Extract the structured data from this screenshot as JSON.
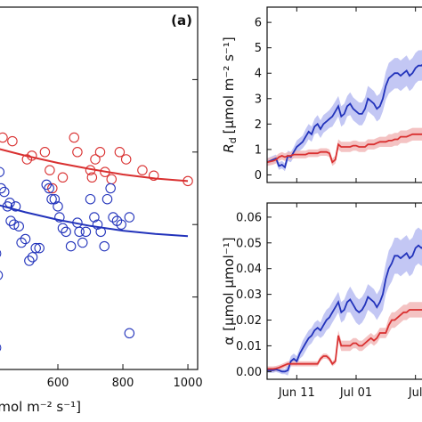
{
  "chart_data": [
    {
      "type": "scatter",
      "panel_label": "(a)",
      "xlabel_visible": "[μmol m⁻² s⁻¹]",
      "x_ticks": [
        600,
        800,
        1000
      ],
      "xlim": [
        400,
        1030
      ],
      "ylim": [
        0,
        1
      ],
      "series": [
        {
          "color": "#d93030",
          "points": [
            [
              430,
              0.64
            ],
            [
              460,
              0.63
            ],
            [
              505,
              0.58
            ],
            [
              520,
              0.59
            ],
            [
              560,
              0.6
            ],
            [
              575,
              0.55
            ],
            [
              583,
              0.5
            ],
            [
              615,
              0.53
            ],
            [
              650,
              0.64
            ],
            [
              660,
              0.6
            ],
            [
              700,
              0.55
            ],
            [
              705,
              0.53
            ],
            [
              715,
              0.58
            ],
            [
              730,
              0.6
            ],
            [
              745,
              0.545
            ],
            [
              765,
              0.525
            ],
            [
              790,
              0.6
            ],
            [
              810,
              0.58
            ],
            [
              860,
              0.55
            ],
            [
              895,
              0.535
            ]
          ],
          "fit": [
            [
              400,
              0.613
            ],
            [
              500,
              0.59
            ],
            [
              600,
              0.57
            ],
            [
              700,
              0.553
            ],
            [
              800,
              0.538
            ],
            [
              900,
              0.527
            ],
            [
              1000,
              0.52
            ]
          ],
          "fit_end_marker": [
            1000,
            0.52
          ]
        },
        {
          "color": "#2233bb",
          "points": [
            [
              405,
              0.38
            ],
            [
              410,
              0.32
            ],
            [
              415,
              0.26
            ],
            [
              420,
              0.545
            ],
            [
              425,
              0.5
            ],
            [
              435,
              0.49
            ],
            [
              445,
              0.45
            ],
            [
              452,
              0.46
            ],
            [
              455,
              0.41
            ],
            [
              465,
              0.4
            ],
            [
              470,
              0.45
            ],
            [
              480,
              0.395
            ],
            [
              488,
              0.35
            ],
            [
              500,
              0.36
            ],
            [
              512,
              0.3
            ],
            [
              522,
              0.31
            ],
            [
              532,
              0.335
            ],
            [
              543,
              0.335
            ],
            [
              565,
              0.51
            ],
            [
              573,
              0.5
            ],
            [
              581,
              0.47
            ],
            [
              590,
              0.47
            ],
            [
              600,
              0.45
            ],
            [
              605,
              0.42
            ],
            [
              615,
              0.39
            ],
            [
              625,
              0.38
            ],
            [
              640,
              0.34
            ],
            [
              660,
              0.405
            ],
            [
              666,
              0.38
            ],
            [
              676,
              0.35
            ],
            [
              686,
              0.38
            ],
            [
              700,
              0.47
            ],
            [
              712,
              0.42
            ],
            [
              722,
              0.4
            ],
            [
              732,
              0.38
            ],
            [
              743,
              0.34
            ],
            [
              752,
              0.47
            ],
            [
              762,
              0.5
            ],
            [
              770,
              0.42
            ],
            [
              782,
              0.41
            ],
            [
              795,
              0.4
            ],
            [
              820,
              0.42
            ],
            [
              410,
              0.06
            ],
            [
              820,
              0.1
            ]
          ],
          "fit": [
            [
              400,
              0.458
            ],
            [
              500,
              0.434
            ],
            [
              600,
              0.413
            ],
            [
              700,
              0.396
            ],
            [
              800,
              0.383
            ],
            [
              900,
              0.374
            ],
            [
              1000,
              0.368
            ]
          ]
        }
      ]
    },
    {
      "type": "line",
      "ylabel": "R_d [μmol m⁻² s⁻¹]",
      "ylabel_main": "R",
      "ylabel_sub": "d",
      "ylabel_unit": "[μmol m⁻² s⁻¹]",
      "ylim": [
        -0.3,
        6.6
      ],
      "y_ticks": [
        0,
        1,
        2,
        3,
        4,
        5,
        6
      ],
      "x_ticks": [
        "Jun 11",
        "Jul 01",
        "Jul"
      ],
      "x_tick_days": [
        10,
        30,
        50
      ],
      "xlim": [
        0,
        57
      ],
      "series": [
        {
          "color": "#2233bb",
          "band": "#b9bdf2",
          "x": [
            0,
            2,
            3,
            4,
            5,
            6,
            7,
            8,
            9,
            10,
            11,
            12,
            13,
            14,
            15,
            16,
            17,
            18,
            19,
            20,
            21,
            22,
            23,
            24,
            25,
            26,
            27,
            28,
            29,
            30,
            31,
            32,
            33,
            34,
            35,
            36,
            37,
            38,
            39,
            40,
            41,
            42,
            43,
            44,
            45,
            46,
            47,
            48,
            49,
            50,
            51,
            52,
            53,
            54,
            55,
            56,
            57
          ],
          "y": [
            0.5,
            0.6,
            0.65,
            0.35,
            0.4,
            0.3,
            0.75,
            0.7,
            0.9,
            1.1,
            1.2,
            1.3,
            1.5,
            1.7,
            1.6,
            1.9,
            2.0,
            1.8,
            2.0,
            2.1,
            2.2,
            2.3,
            2.5,
            2.7,
            2.3,
            2.4,
            2.7,
            2.8,
            2.6,
            2.5,
            2.4,
            2.4,
            2.6,
            3.0,
            2.9,
            2.8,
            2.6,
            2.7,
            3.0,
            3.5,
            3.8,
            3.9,
            4.0,
            4.0,
            3.9,
            4.0,
            4.1,
            3.9,
            4.0,
            4.2,
            4.3,
            4.3,
            4.4,
            4.3,
            4.3,
            4.4,
            4.4
          ],
          "err": [
            0.15,
            0.15,
            0.15,
            0.15,
            0.15,
            0.15,
            0.2,
            0.2,
            0.2,
            0.25,
            0.25,
            0.25,
            0.3,
            0.3,
            0.3,
            0.3,
            0.35,
            0.35,
            0.35,
            0.35,
            0.35,
            0.4,
            0.4,
            0.4,
            0.4,
            0.4,
            0.4,
            0.45,
            0.45,
            0.45,
            0.45,
            0.45,
            0.45,
            0.5,
            0.5,
            0.5,
            0.5,
            0.5,
            0.5,
            0.55,
            0.6,
            0.6,
            0.6,
            0.6,
            0.6,
            0.6,
            0.6,
            0.6,
            0.6,
            0.6,
            0.6,
            0.6,
            0.6,
            0.6,
            0.6,
            0.6,
            0.6
          ]
        },
        {
          "color": "#d93030",
          "band": "#f2b9b9",
          "x": [
            0,
            2,
            3,
            4,
            5,
            6,
            7,
            8,
            9,
            10,
            11,
            12,
            13,
            14,
            15,
            16,
            17,
            18,
            19,
            20,
            21,
            22,
            23,
            24,
            25,
            26,
            27,
            28,
            29,
            30,
            31,
            32,
            33,
            34,
            35,
            36,
            37,
            38,
            39,
            40,
            41,
            42,
            43,
            44,
            45,
            46,
            47,
            48,
            49,
            50,
            51,
            52,
            53,
            54,
            55,
            56,
            57
          ],
          "y": [
            0.5,
            0.55,
            0.6,
            0.7,
            0.75,
            0.7,
            0.75,
            0.75,
            0.8,
            0.8,
            0.8,
            0.8,
            0.8,
            0.85,
            0.85,
            0.85,
            0.85,
            0.9,
            0.9,
            0.9,
            0.85,
            0.5,
            0.6,
            1.2,
            1.1,
            1.1,
            1.1,
            1.1,
            1.15,
            1.15,
            1.1,
            1.1,
            1.1,
            1.2,
            1.2,
            1.2,
            1.25,
            1.3,
            1.3,
            1.3,
            1.35,
            1.35,
            1.4,
            1.4,
            1.5,
            1.5,
            1.5,
            1.55,
            1.6,
            1.6,
            1.6,
            1.6,
            1.6,
            1.6,
            1.6,
            1.6,
            1.6
          ],
          "err": [
            0.15,
            0.15,
            0.15,
            0.15,
            0.15,
            0.15,
            0.15,
            0.15,
            0.15,
            0.15,
            0.15,
            0.15,
            0.15,
            0.15,
            0.15,
            0.15,
            0.15,
            0.15,
            0.15,
            0.15,
            0.15,
            0.15,
            0.15,
            0.2,
            0.2,
            0.2,
            0.2,
            0.2,
            0.2,
            0.2,
            0.2,
            0.2,
            0.2,
            0.2,
            0.2,
            0.2,
            0.2,
            0.2,
            0.2,
            0.2,
            0.25,
            0.25,
            0.25,
            0.25,
            0.25,
            0.25,
            0.25,
            0.25,
            0.25,
            0.25,
            0.25,
            0.25,
            0.25,
            0.25,
            0.25,
            0.25,
            0.25
          ]
        }
      ]
    },
    {
      "type": "line",
      "ylabel": "α [μmol μmol⁻¹]",
      "ylabel_main": "α",
      "ylabel_unit": "[μmol μmol⁻¹]",
      "ylim": [
        -0.003,
        0.0655
      ],
      "y_ticks": [
        0.0,
        0.01,
        0.02,
        0.03,
        0.04,
        0.05,
        0.06
      ],
      "x_ticks": [
        "Jun 11",
        "Jul 01",
        "Jul"
      ],
      "x_tick_days": [
        10,
        30,
        50
      ],
      "xlim": [
        0,
        57
      ],
      "series": [
        {
          "color": "#2233bb",
          "band": "#b9bdf2",
          "x": [
            0,
            2,
            3,
            4,
            5,
            6,
            7,
            8,
            9,
            10,
            11,
            12,
            13,
            14,
            15,
            16,
            17,
            18,
            19,
            20,
            21,
            22,
            23,
            24,
            25,
            26,
            27,
            28,
            29,
            30,
            31,
            32,
            33,
            34,
            35,
            36,
            37,
            38,
            39,
            40,
            41,
            42,
            43,
            44,
            45,
            46,
            47,
            48,
            49,
            50,
            51,
            52,
            53,
            54,
            55,
            56,
            57
          ],
          "y": [
            0.0005,
            0.0005,
            0.0008,
            0.0005,
            0.0,
            0.0,
            0.0005,
            0.004,
            0.005,
            0.004,
            0.007,
            0.009,
            0.011,
            0.013,
            0.014,
            0.016,
            0.017,
            0.016,
            0.018,
            0.02,
            0.021,
            0.023,
            0.025,
            0.027,
            0.023,
            0.024,
            0.027,
            0.028,
            0.026,
            0.024,
            0.023,
            0.024,
            0.026,
            0.029,
            0.028,
            0.027,
            0.025,
            0.027,
            0.03,
            0.036,
            0.04,
            0.042,
            0.045,
            0.045,
            0.044,
            0.045,
            0.046,
            0.044,
            0.045,
            0.048,
            0.049,
            0.048,
            0.049,
            0.049,
            0.049,
            0.049,
            0.049
          ],
          "err": [
            0.001,
            0.001,
            0.001,
            0.001,
            0.001,
            0.001,
            0.002,
            0.002,
            0.002,
            0.002,
            0.002,
            0.003,
            0.003,
            0.003,
            0.003,
            0.003,
            0.003,
            0.003,
            0.004,
            0.004,
            0.004,
            0.004,
            0.004,
            0.004,
            0.004,
            0.004,
            0.004,
            0.005,
            0.005,
            0.005,
            0.005,
            0.005,
            0.005,
            0.005,
            0.005,
            0.005,
            0.005,
            0.005,
            0.006,
            0.006,
            0.007,
            0.007,
            0.007,
            0.007,
            0.007,
            0.007,
            0.007,
            0.007,
            0.007,
            0.007,
            0.007,
            0.007,
            0.007,
            0.007,
            0.007,
            0.007,
            0.007
          ]
        },
        {
          "color": "#d93030",
          "band": "#f2b9b9",
          "x": [
            0,
            2,
            3,
            4,
            5,
            6,
            7,
            8,
            9,
            10,
            11,
            12,
            13,
            14,
            15,
            16,
            17,
            18,
            19,
            20,
            21,
            22,
            23,
            24,
            25,
            26,
            27,
            28,
            29,
            30,
            31,
            32,
            33,
            34,
            35,
            36,
            37,
            38,
            39,
            40,
            41,
            42,
            43,
            44,
            45,
            46,
            47,
            48,
            49,
            50,
            51,
            52,
            53,
            54,
            55,
            56,
            57
          ],
          "y": [
            0.001,
            0.001,
            0.0012,
            0.0015,
            0.002,
            0.0025,
            0.003,
            0.003,
            0.003,
            0.003,
            0.003,
            0.003,
            0.003,
            0.003,
            0.003,
            0.003,
            0.003,
            0.005,
            0.006,
            0.006,
            0.005,
            0.003,
            0.004,
            0.014,
            0.01,
            0.01,
            0.01,
            0.01,
            0.011,
            0.011,
            0.01,
            0.01,
            0.011,
            0.012,
            0.013,
            0.012,
            0.013,
            0.015,
            0.015,
            0.015,
            0.018,
            0.02,
            0.02,
            0.021,
            0.022,
            0.023,
            0.023,
            0.024,
            0.024,
            0.024,
            0.024,
            0.024,
            0.024,
            0.024,
            0.024,
            0.024,
            0.024
          ],
          "err": [
            0.001,
            0.001,
            0.001,
            0.001,
            0.001,
            0.001,
            0.001,
            0.001,
            0.001,
            0.001,
            0.001,
            0.001,
            0.001,
            0.001,
            0.001,
            0.001,
            0.001,
            0.001,
            0.001,
            0.001,
            0.001,
            0.001,
            0.001,
            0.002,
            0.002,
            0.002,
            0.002,
            0.002,
            0.002,
            0.002,
            0.002,
            0.002,
            0.002,
            0.002,
            0.002,
            0.002,
            0.002,
            0.002,
            0.002,
            0.002,
            0.003,
            0.003,
            0.003,
            0.003,
            0.003,
            0.003,
            0.003,
            0.003,
            0.003,
            0.003,
            0.003,
            0.003,
            0.003,
            0.003,
            0.003,
            0.003,
            0.003
          ]
        }
      ]
    }
  ]
}
